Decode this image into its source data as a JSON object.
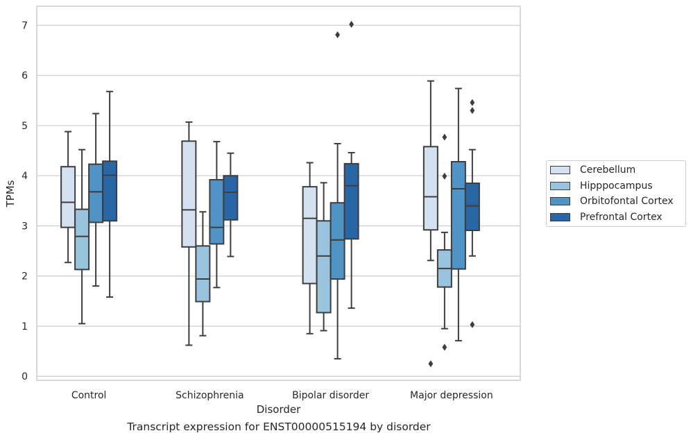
{
  "chart_data": {
    "type": "box",
    "xlabel": "Disorder",
    "ylabel": "TPMs",
    "caption": "Transcript expression for ENST00000515194 by disorder",
    "categories": [
      "Control",
      "Schizophrenia",
      "Bipolar disorder",
      "Major depression"
    ],
    "y_ticks": [
      "0",
      "1",
      "2",
      "3",
      "4",
      "5",
      "6",
      "7"
    ],
    "ylim": [
      -0.08,
      7.38
    ],
    "grid": "horizontal",
    "legend_position": "right",
    "series": [
      {
        "name": "Cerebellum",
        "color": "#d3e1f0",
        "boxes": [
          {
            "whisker_low": 2.27,
            "q1": 2.97,
            "median": 3.47,
            "q3": 4.18,
            "whisker_high": 4.88,
            "outliers": []
          },
          {
            "whisker_low": 0.62,
            "q1": 2.58,
            "median": 3.32,
            "q3": 4.69,
            "whisker_high": 5.07,
            "outliers": []
          },
          {
            "whisker_low": 0.85,
            "q1": 1.85,
            "median": 3.15,
            "q3": 3.78,
            "whisker_high": 4.26,
            "outliers": []
          },
          {
            "whisker_low": 2.31,
            "q1": 2.92,
            "median": 3.58,
            "q3": 4.58,
            "whisker_high": 5.89,
            "outliers": [
              0.25
            ]
          }
        ]
      },
      {
        "name": "Hipppocampus",
        "color": "#9ac3de",
        "boxes": [
          {
            "whisker_low": 1.05,
            "q1": 2.13,
            "median": 2.79,
            "q3": 3.33,
            "whisker_high": 4.52,
            "outliers": []
          },
          {
            "whisker_low": 0.81,
            "q1": 1.49,
            "median": 1.94,
            "q3": 2.6,
            "whisker_high": 3.28,
            "outliers": []
          },
          {
            "whisker_low": 0.91,
            "q1": 1.27,
            "median": 2.4,
            "q3": 3.1,
            "whisker_high": 3.86,
            "outliers": []
          },
          {
            "whisker_low": 0.95,
            "q1": 1.78,
            "median": 2.15,
            "q3": 2.52,
            "whisker_high": 2.87,
            "outliers": [
              0.58,
              3.99,
              4.77
            ]
          }
        ]
      },
      {
        "name": "Orbitofontal Cortex",
        "color": "#5093c7",
        "boxes": [
          {
            "whisker_low": 1.8,
            "q1": 3.07,
            "median": 3.68,
            "q3": 4.23,
            "whisker_high": 5.24,
            "outliers": []
          },
          {
            "whisker_low": 1.77,
            "q1": 2.64,
            "median": 2.97,
            "q3": 3.92,
            "whisker_high": 4.68,
            "outliers": []
          },
          {
            "whisker_low": 0.35,
            "q1": 1.94,
            "median": 2.72,
            "q3": 3.46,
            "whisker_high": 4.64,
            "outliers": [
              6.81
            ]
          },
          {
            "whisker_low": 0.71,
            "q1": 2.14,
            "median": 3.74,
            "q3": 4.28,
            "whisker_high": 5.74,
            "outliers": []
          }
        ]
      },
      {
        "name": "Prefrontal Cortex",
        "color": "#2866a6",
        "boxes": [
          {
            "whisker_low": 1.58,
            "q1": 3.1,
            "median": 4.01,
            "q3": 4.29,
            "whisker_high": 5.68,
            "outliers": []
          },
          {
            "whisker_low": 2.39,
            "q1": 3.12,
            "median": 3.67,
            "q3": 4.0,
            "whisker_high": 4.45,
            "outliers": []
          },
          {
            "whisker_low": 1.36,
            "q1": 2.74,
            "median": 3.8,
            "q3": 4.24,
            "whisker_high": 4.46,
            "outliers": [
              7.02
            ]
          },
          {
            "whisker_low": 2.4,
            "q1": 2.91,
            "median": 3.4,
            "q3": 3.85,
            "whisker_high": 4.52,
            "outliers": [
              1.03,
              5.3,
              5.46
            ]
          }
        ]
      }
    ]
  }
}
